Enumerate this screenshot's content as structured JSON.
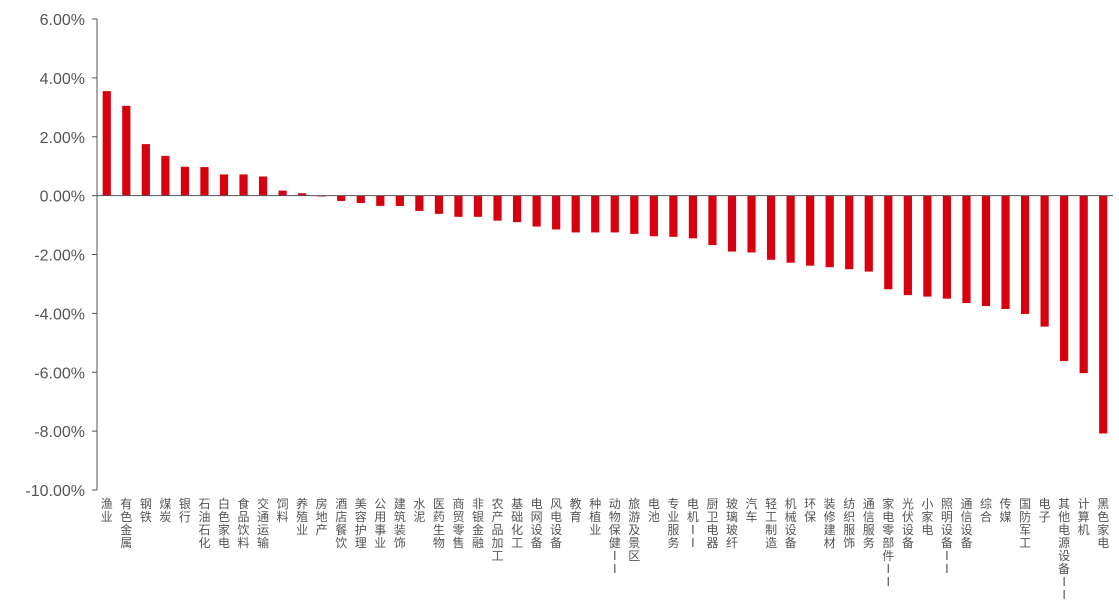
{
  "chart_data": {
    "type": "bar",
    "title": "",
    "xlabel": "",
    "ylabel": "",
    "ylim": [
      -10,
      6
    ],
    "ytick_values": [
      6,
      4,
      2,
      0,
      -2,
      -4,
      -6,
      -8,
      -10
    ],
    "ytick_labels": [
      "6.00%",
      "4.00%",
      "2.00%",
      "0.00%",
      "-2.00%",
      "-4.00%",
      "-6.00%",
      "-8.00%",
      "-10.00%"
    ],
    "bar_color": "#d7000f",
    "grid": false,
    "legend": "none",
    "categories": [
      "渔业",
      "有色金属",
      "钢铁",
      "煤炭",
      "银行",
      "石油石化",
      "白色家电",
      "食品饮料",
      "交通运输",
      "饲料",
      "养殖业",
      "房地产",
      "酒店餐饮",
      "美容护理",
      "公用事业",
      "建筑装饰",
      "水泥",
      "医药生物",
      "商贸零售",
      "非银金融",
      "农产品加工",
      "基础化工",
      "电网设备",
      "风电设备",
      "教育",
      "种植业",
      "动物保健II",
      "旅游及景区",
      "电池",
      "专业服务",
      "电机II",
      "厨卫电器",
      "玻璃玻纤",
      "汽车",
      "轻工制造",
      "机械设备",
      "环保",
      "装修建材",
      "纺织服饰",
      "通信服务",
      "家电零部件II",
      "光伏设备",
      "小家电",
      "照明设备II",
      "通信设备",
      "综合",
      "传媒",
      "国防军工",
      "电子",
      "其他电源设备II",
      "计算机",
      "黑色家电"
    ],
    "values": [
      3.55,
      3.05,
      1.75,
      1.35,
      0.98,
      0.97,
      0.72,
      0.72,
      0.65,
      0.17,
      0.08,
      -0.03,
      -0.18,
      -0.25,
      -0.35,
      -0.35,
      -0.52,
      -0.62,
      -0.72,
      -0.72,
      -0.85,
      -0.9,
      -1.05,
      -1.15,
      -1.25,
      -1.25,
      -1.25,
      -1.3,
      -1.38,
      -1.4,
      -1.45,
      -1.68,
      -1.9,
      -1.93,
      -2.18,
      -2.28,
      -2.38,
      -2.43,
      -2.5,
      -2.58,
      -3.18,
      -3.38,
      -3.43,
      -3.5,
      -3.65,
      -3.75,
      -3.85,
      -4.02,
      -4.45,
      -5.62,
      -6.03,
      -8.08
    ]
  }
}
